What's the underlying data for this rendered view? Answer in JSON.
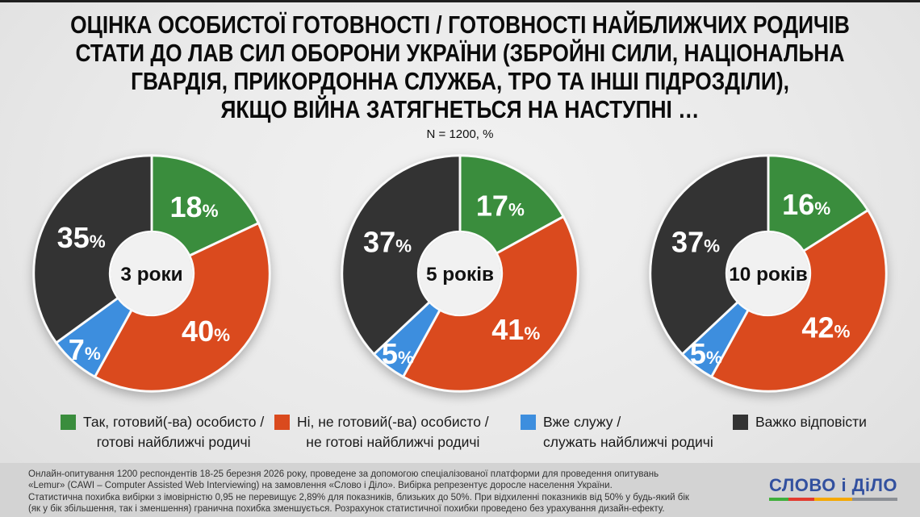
{
  "header": {
    "title_lines": [
      "ОЦІНКА ОСОБИСТОЇ ГОТОВНОСТІ / ГОТОВНОСТІ НАЙБЛИЖЧИХ РОДИЧІВ",
      "СТАТИ ДО ЛАВ СИЛ ОБОРОНИ УКРАЇНИ (ЗБРОЙНІ СИЛИ, НАЦІОНАЛЬНА",
      "ГВАРДІЯ, ПРИКОРДОННА СЛУЖБА, ТРО ТА ІНШІ ПІДРОЗДІЛИ),",
      "ЯКЩО ВІЙНА ЗАТЯГНЕТЬСЯ НА НАСТУПНІ …"
    ],
    "subtitle": "N = 1200, %"
  },
  "chart_data": {
    "type": "pie",
    "variant": "donut",
    "title": "ОЦІНКА ОСОБИСТОЇ ГОТОВНОСТІ / ГОТОВНОСТІ НАЙБЛИЖЧИХ РОДИЧІВ СТАТИ ДО ЛАВ СИЛ ОБОРОНИ УКРАЇНИ (ЗБРОЙНІ СИЛИ, НАЦІОНАЛЬНА ГВАРДІЯ, ПРИКОРДОННА СЛУЖБА, ТРО ТА ІНШІ ПІДРОЗДІЛИ), ЯКЩО ВІЙНА ЗАТЯГНЕТЬСЯ НА НАСТУПНІ …",
    "subtitle": "N = 1200, %",
    "unit": "%",
    "legend_position": "bottom",
    "categories": [
      "Так, готовий(-ва) особисто / готові найближчі родичі",
      "Ні, не готовий(-ва) особисто / не готові найближчі родичі",
      "Вже служу / служать найближчі родичі",
      "Важко відповісти"
    ],
    "colors": [
      "#3a8d3d",
      "#da4a1e",
      "#3d8ede",
      "#333333"
    ],
    "charts": [
      {
        "label": "3 роки",
        "values": [
          18,
          40,
          7,
          35
        ]
      },
      {
        "label": "5 років",
        "values": [
          17,
          41,
          5,
          37
        ]
      },
      {
        "label": "10 років",
        "values": [
          16,
          42,
          5,
          37
        ]
      }
    ]
  },
  "legend": {
    "items": [
      {
        "color": "#3a8d3d",
        "line1": "Так, готовий(-ва) особисто /",
        "line2": "готові найближчі родичі"
      },
      {
        "color": "#da4a1e",
        "line1": "Ні, не готовий(-ва) особисто /",
        "line2": "не готові найближчі родичі"
      },
      {
        "color": "#3d8ede",
        "line1": "Вже служу /",
        "line2": "служать найближчі родичі"
      },
      {
        "color": "#333333",
        "line1": "Важко відповісти",
        "line2": ""
      }
    ]
  },
  "footer": {
    "lines": [
      "Онлайн-опитування 1200 респондентів 18-25 березня 2026 року, проведене за допомогою спеціалізованої платформи для проведення опитувань",
      "«Lemur» (CAWI – Computer Assisted Web Interviewing) на замовлення «Слово і Діло». Вибірка репрезентує доросле населення України.",
      "Статистична похибка вибірки з імовірністю 0,95 не перевищує 2,89% для показників, близьких до 50%. При відхиленні показників від 50% у будь-який бік",
      "(як у бік збільшення, так і зменшення) гранична похибка зменшується. Розрахунок статистичної похибки проведено без урахування дизайн-ефекту."
    ],
    "logo_text": "СЛОВО і ДіЛО",
    "logo_color": "#32509f",
    "logo_bar_colors": [
      "#3faf3b",
      "#e23b2e",
      "#f5a800",
      "#8c9096"
    ]
  }
}
